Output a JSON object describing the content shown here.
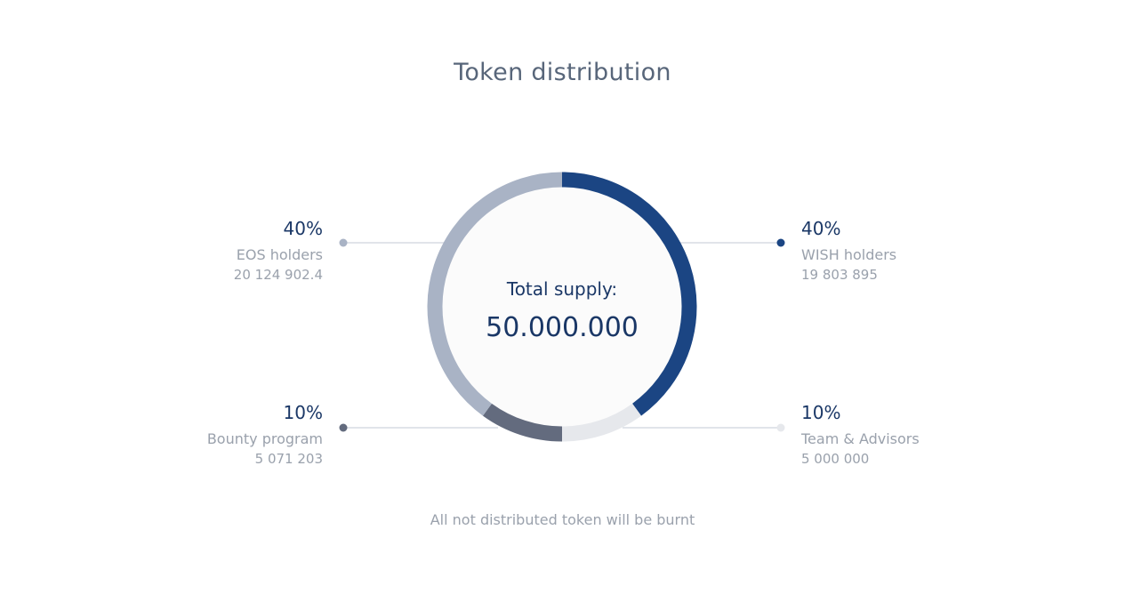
{
  "title": "Token distribution",
  "center": {
    "label": "Total supply:",
    "value": "50.000.000"
  },
  "footer": "All not distributed token will be burnt",
  "chart_data": {
    "type": "pie",
    "title": "Token distribution",
    "slices": [
      {
        "label": "WISH holders",
        "percent_label": "40%",
        "amount_label": "19 803 895",
        "value": 40,
        "color": "#1b4583"
      },
      {
        "label": "Team & Advisors",
        "percent_label": "10%",
        "amount_label": "5 000 000",
        "value": 10,
        "color": "#e6e8ec"
      },
      {
        "label": "Bounty program",
        "percent_label": "10%",
        "amount_label": "5 071 203",
        "value": 10,
        "color": "#636b7e"
      },
      {
        "label": "EOS holders",
        "percent_label": "40%",
        "amount_label": "20 124 902.4",
        "value": 40,
        "color": "#a9b3c5"
      }
    ]
  }
}
